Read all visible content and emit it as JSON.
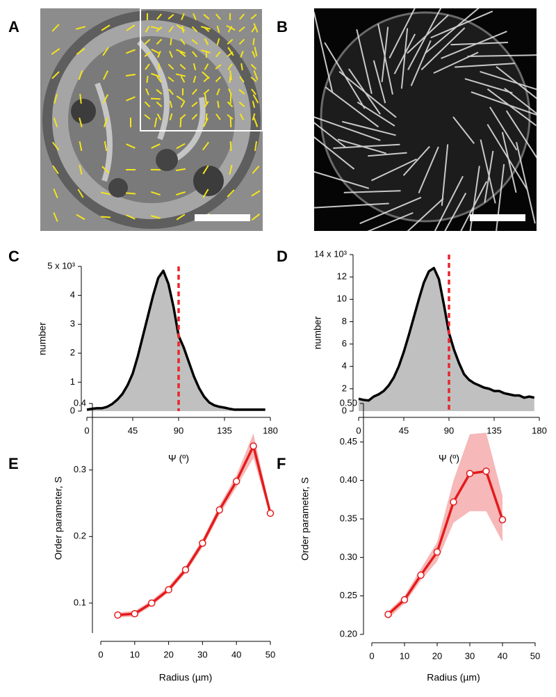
{
  "panels": [
    {
      "label": "A"
    },
    {
      "label": "B"
    }
  ],
  "chart_data": [
    {
      "type": "area",
      "panel_label": "C",
      "x_label": "Ψ (º)",
      "y_label": "number",
      "x": [
        0,
        5,
        10,
        15,
        20,
        25,
        30,
        35,
        40,
        45,
        50,
        55,
        60,
        65,
        70,
        75,
        80,
        85,
        90,
        95,
        100,
        105,
        110,
        115,
        120,
        125,
        130,
        135,
        140,
        145,
        150,
        155,
        160,
        165,
        170,
        175
      ],
      "values": [
        0.05,
        0.08,
        0.1,
        0.1,
        0.15,
        0.25,
        0.4,
        0.6,
        0.9,
        1.3,
        1.9,
        2.6,
        3.3,
        4.0,
        4.6,
        4.85,
        4.4,
        3.6,
        2.6,
        2.2,
        1.7,
        1.2,
        0.8,
        0.5,
        0.3,
        0.2,
        0.15,
        0.12,
        0.08,
        0.05,
        0.05,
        0.05,
        0.05,
        0.05,
        0.05,
        0.05
      ],
      "color": "#000000",
      "fill": "#c0c0c0",
      "vline": 90,
      "vline_color": "#e8262a",
      "xlim": [
        0,
        180
      ],
      "xticks": [
        0,
        45,
        90,
        135,
        180
      ],
      "ylim": [
        0,
        5
      ],
      "yticks": [
        0,
        1,
        2,
        3,
        4,
        {
          "value": 5,
          "label": "5 x 10³"
        }
      ]
    },
    {
      "type": "area",
      "panel_label": "D",
      "x_label": "Ψ (º)",
      "y_label": "number",
      "x": [
        0,
        5,
        10,
        15,
        20,
        25,
        30,
        35,
        40,
        45,
        50,
        55,
        60,
        65,
        70,
        75,
        80,
        85,
        90,
        95,
        100,
        105,
        110,
        115,
        120,
        125,
        130,
        135,
        140,
        145,
        150,
        155,
        160,
        165,
        170,
        175
      ],
      "values": [
        1.1,
        1.0,
        0.95,
        1.3,
        1.5,
        1.8,
        2.3,
        3.0,
        4.0,
        5.3,
        6.8,
        8.4,
        10.0,
        11.5,
        12.5,
        12.8,
        11.8,
        9.5,
        7.0,
        5.5,
        4.3,
        3.3,
        2.8,
        2.5,
        2.3,
        2.1,
        2.0,
        1.8,
        1.8,
        1.6,
        1.5,
        1.4,
        1.4,
        1.2,
        1.3,
        1.2
      ],
      "color": "#000000",
      "fill": "#c0c0c0",
      "vline": 90,
      "vline_color": "#e8262a",
      "xlim": [
        0,
        180
      ],
      "xticks": [
        0,
        45,
        90,
        135,
        180
      ],
      "ylim": [
        0,
        14
      ],
      "yticks": [
        0,
        2,
        4,
        6,
        8,
        10,
        12,
        {
          "value": 14,
          "label": "14 x 10³"
        }
      ]
    },
    {
      "type": "line",
      "panel_label": "E",
      "x_label": "Radius (µm)",
      "y_label": "Order parameter, S",
      "x": [
        5,
        10,
        15,
        20,
        25,
        30,
        35,
        40,
        45,
        50
      ],
      "values": [
        0.082,
        0.084,
        0.1,
        0.12,
        0.15,
        0.19,
        0.24,
        0.283,
        0.336,
        0.235
      ],
      "band_lower": [
        0.078,
        0.08,
        0.096,
        0.116,
        0.145,
        0.184,
        0.233,
        0.274,
        0.318,
        0.23
      ],
      "band_upper": [
        0.086,
        0.088,
        0.104,
        0.125,
        0.155,
        0.196,
        0.247,
        0.292,
        0.355,
        0.24
      ],
      "color": "#e41a1c",
      "band_color": "#f4a6a6",
      "xlim": [
        0,
        50
      ],
      "xticks": [
        0,
        10,
        20,
        30,
        40,
        50
      ],
      "ylim": [
        0.055,
        0.4
      ],
      "yticks": [
        0.1,
        0.2,
        0.3,
        0.4
      ]
    },
    {
      "type": "line",
      "panel_label": "F",
      "x_label": "Radius (µm)",
      "y_label": "Order parameter, S",
      "x": [
        5,
        10,
        15,
        20,
        25,
        30,
        35,
        40
      ],
      "values": [
        0.226,
        0.245,
        0.277,
        0.307,
        0.372,
        0.409,
        0.412,
        0.349
      ],
      "band_lower": [
        0.22,
        0.24,
        0.27,
        0.295,
        0.345,
        0.36,
        0.36,
        0.32
      ],
      "band_upper": [
        0.23,
        0.25,
        0.285,
        0.32,
        0.4,
        0.46,
        0.462,
        0.38
      ],
      "color": "#e41a1c",
      "band_color": "#f4a6a6",
      "xlim": [
        0,
        50
      ],
      "xticks": [
        0,
        10,
        20,
        30,
        40,
        50
      ],
      "ylim": [
        0.2,
        0.5
      ],
      "yticks": [
        {
          "value": 0.2,
          "label": "0.20"
        },
        0.25,
        {
          "value": 0.3,
          "label": "0.30"
        },
        0.35,
        {
          "value": 0.4,
          "label": "0.40"
        },
        0.45,
        {
          "value": 0.5,
          "label": "0.50"
        }
      ]
    }
  ]
}
